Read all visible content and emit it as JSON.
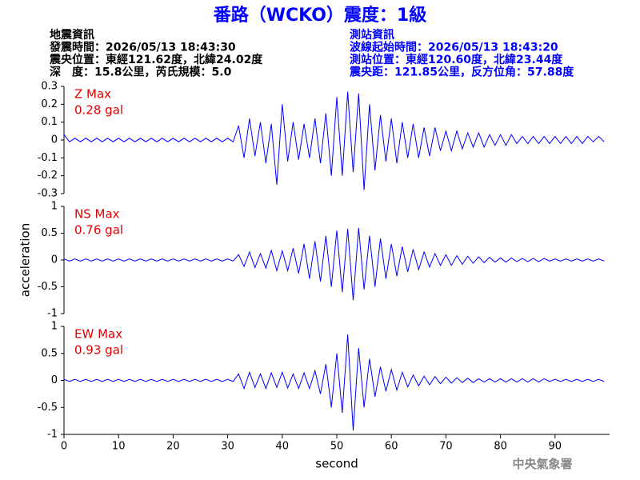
{
  "header": {
    "title": "番路（WCKO）震度：1級",
    "left": [
      "地震資訊",
      "發震時間：2026/05/13 18:43:30",
      "震央位置：東經121.62度，北緯24.02度",
      "深　度：15.8公里，芮氏規模：5.0"
    ],
    "right": [
      "測站資訊",
      "波線起始時間：2026/05/13 18:43:20",
      "測站位置：東經120.60度，北緯23.44度",
      "震央距：121.85公里，反方位角：57.88度"
    ],
    "footer": "中央氣象署"
  },
  "chart_data": [
    {
      "type": "line",
      "annotations": [
        "Z Max",
        "0.28 gal"
      ],
      "color": "#0000ff",
      "xlim": [
        0,
        100
      ],
      "ylim": [
        -0.3,
        0.3
      ],
      "yticks": [
        -0.3,
        -0.2,
        -0.1,
        0,
        0.1,
        0.2,
        0.3
      ],
      "x": [
        0,
        1,
        2,
        3,
        4,
        5,
        6,
        7,
        8,
        9,
        10,
        11,
        12,
        13,
        14,
        15,
        16,
        17,
        18,
        19,
        20,
        21,
        22,
        23,
        24,
        25,
        26,
        27,
        28,
        29,
        30,
        31,
        32,
        33,
        34,
        35,
        36,
        37,
        38,
        39,
        40,
        41,
        42,
        43,
        44,
        45,
        46,
        47,
        48,
        49,
        50,
        51,
        52,
        53,
        54,
        55,
        56,
        57,
        58,
        59,
        60,
        61,
        62,
        63,
        64,
        65,
        66,
        67,
        68,
        69,
        70,
        71,
        72,
        73,
        74,
        75,
        76,
        77,
        78,
        79,
        80,
        81,
        82,
        83,
        84,
        85,
        86,
        87,
        88,
        89,
        90,
        91,
        92,
        93,
        94,
        95,
        96,
        97,
        98,
        99
      ],
      "values": [
        0.03,
        -0.01,
        0.01,
        -0.01,
        0.01,
        -0.01,
        0.01,
        -0.01,
        0.01,
        -0.01,
        0.01,
        -0.01,
        0.01,
        -0.01,
        0.01,
        -0.01,
        0.01,
        -0.01,
        0.01,
        -0.01,
        0.01,
        -0.01,
        0.01,
        -0.01,
        0.01,
        -0.01,
        0.01,
        -0.01,
        0.01,
        -0.01,
        0.01,
        -0.01,
        0.08,
        -0.1,
        0.12,
        -0.09,
        0.1,
        -0.13,
        0.09,
        -0.25,
        0.2,
        -0.12,
        0.1,
        -0.11,
        0.09,
        -0.1,
        0.12,
        -0.13,
        0.15,
        -0.2,
        0.24,
        -0.2,
        0.27,
        -0.18,
        0.26,
        -0.28,
        0.2,
        -0.17,
        0.14,
        -0.12,
        0.12,
        -0.13,
        0.1,
        -0.1,
        0.09,
        -0.1,
        0.07,
        -0.09,
        0.07,
        -0.06,
        0.05,
        -0.06,
        0.05,
        -0.05,
        0.04,
        -0.04,
        0.04,
        -0.04,
        0.03,
        -0.03,
        0.03,
        -0.03,
        0.03,
        -0.02,
        0.02,
        -0.02,
        0.02,
        -0.02,
        0.02,
        -0.02,
        0.02,
        -0.02,
        0.02,
        -0.02,
        0.02,
        -0.02,
        0.02,
        -0.01,
        0.02,
        -0.01
      ]
    },
    {
      "type": "line",
      "annotations": [
        "NS Max",
        "0.76 gal"
      ],
      "color": "#0000ff",
      "ylabel": "acceleration",
      "xlim": [
        0,
        100
      ],
      "ylim": [
        -1,
        1
      ],
      "yticks": [
        -1,
        -0.5,
        0,
        0.5,
        1
      ],
      "x": [
        0,
        1,
        2,
        3,
        4,
        5,
        6,
        7,
        8,
        9,
        10,
        11,
        12,
        13,
        14,
        15,
        16,
        17,
        18,
        19,
        20,
        21,
        22,
        23,
        24,
        25,
        26,
        27,
        28,
        29,
        30,
        31,
        32,
        33,
        34,
        35,
        36,
        37,
        38,
        39,
        40,
        41,
        42,
        43,
        44,
        45,
        46,
        47,
        48,
        49,
        50,
        51,
        52,
        53,
        54,
        55,
        56,
        57,
        58,
        59,
        60,
        61,
        62,
        63,
        64,
        65,
        66,
        67,
        68,
        69,
        70,
        71,
        72,
        73,
        74,
        75,
        76,
        77,
        78,
        79,
        80,
        81,
        82,
        83,
        84,
        85,
        86,
        87,
        88,
        89,
        90,
        91,
        92,
        93,
        94,
        95,
        96,
        97,
        98,
        99
      ],
      "values": [
        0.02,
        -0.02,
        0.02,
        -0.02,
        0.02,
        -0.02,
        0.02,
        -0.02,
        0.02,
        -0.02,
        0.02,
        -0.02,
        0.02,
        -0.02,
        0.02,
        -0.02,
        0.02,
        -0.02,
        0.02,
        -0.02,
        0.02,
        -0.02,
        0.02,
        -0.02,
        0.02,
        -0.02,
        0.02,
        -0.02,
        0.02,
        -0.02,
        0.02,
        -0.02,
        0.1,
        -0.12,
        0.15,
        -0.14,
        0.12,
        -0.15,
        0.18,
        -0.2,
        0.17,
        -0.2,
        0.22,
        -0.25,
        0.3,
        -0.35,
        0.35,
        -0.4,
        0.45,
        -0.5,
        0.55,
        -0.6,
        0.58,
        -0.75,
        0.6,
        -0.55,
        0.45,
        -0.5,
        0.4,
        -0.35,
        0.3,
        -0.3,
        0.25,
        -0.22,
        0.2,
        -0.18,
        0.15,
        -0.13,
        0.12,
        -0.1,
        0.1,
        -0.1,
        0.08,
        -0.08,
        0.07,
        -0.06,
        0.06,
        -0.05,
        0.05,
        -0.04,
        0.04,
        -0.04,
        0.04,
        -0.03,
        0.03,
        -0.03,
        0.03,
        -0.03,
        0.03,
        -0.02,
        0.02,
        -0.02,
        0.02,
        -0.02,
        0.02,
        -0.02,
        0.02,
        -0.02,
        0.02,
        -0.02
      ]
    },
    {
      "type": "line",
      "annotations": [
        "EW Max",
        "0.93 gal"
      ],
      "color": "#0000ff",
      "xlabel": "second",
      "xlim": [
        0,
        100
      ],
      "xticks": [
        0,
        10,
        20,
        30,
        40,
        50,
        60,
        70,
        80,
        90
      ],
      "ylim": [
        -1,
        1
      ],
      "yticks": [
        -1,
        -0.5,
        0,
        0.5,
        1
      ],
      "x": [
        0,
        1,
        2,
        3,
        4,
        5,
        6,
        7,
        8,
        9,
        10,
        11,
        12,
        13,
        14,
        15,
        16,
        17,
        18,
        19,
        20,
        21,
        22,
        23,
        24,
        25,
        26,
        27,
        28,
        29,
        30,
        31,
        32,
        33,
        34,
        35,
        36,
        37,
        38,
        39,
        40,
        41,
        42,
        43,
        44,
        45,
        46,
        47,
        48,
        49,
        50,
        51,
        52,
        53,
        54,
        55,
        56,
        57,
        58,
        59,
        60,
        61,
        62,
        63,
        64,
        65,
        66,
        67,
        68,
        69,
        70,
        71,
        72,
        73,
        74,
        75,
        76,
        77,
        78,
        79,
        80,
        81,
        82,
        83,
        84,
        85,
        86,
        87,
        88,
        89,
        90,
        91,
        92,
        93,
        94,
        95,
        96,
        97,
        98,
        99
      ],
      "values": [
        0.02,
        -0.02,
        0.02,
        -0.02,
        0.02,
        -0.02,
        0.02,
        -0.02,
        0.02,
        -0.02,
        0.02,
        -0.02,
        0.02,
        -0.02,
        0.02,
        -0.02,
        0.02,
        -0.02,
        0.02,
        -0.02,
        0.02,
        -0.02,
        0.02,
        -0.02,
        0.02,
        -0.02,
        0.02,
        -0.02,
        0.02,
        -0.02,
        0.02,
        -0.02,
        0.12,
        -0.15,
        0.15,
        -0.13,
        0.12,
        -0.15,
        0.14,
        -0.13,
        0.15,
        -0.14,
        0.12,
        -0.15,
        0.14,
        -0.15,
        0.18,
        -0.25,
        0.3,
        -0.5,
        0.5,
        -0.6,
        0.85,
        -0.93,
        0.6,
        -0.5,
        0.4,
        -0.3,
        0.25,
        -0.2,
        0.2,
        -0.18,
        0.15,
        -0.12,
        0.1,
        -0.1,
        0.08,
        -0.08,
        0.07,
        -0.06,
        0.06,
        -0.05,
        0.05,
        -0.04,
        0.04,
        -0.04,
        0.03,
        -0.03,
        0.03,
        -0.03,
        0.03,
        -0.03,
        0.03,
        -0.03,
        0.03,
        -0.03,
        0.03,
        -0.03,
        0.03,
        -0.02,
        0.02,
        -0.02,
        0.02,
        -0.02,
        0.02,
        -0.02,
        0.02,
        -0.02,
        0.02,
        -0.02
      ]
    }
  ]
}
